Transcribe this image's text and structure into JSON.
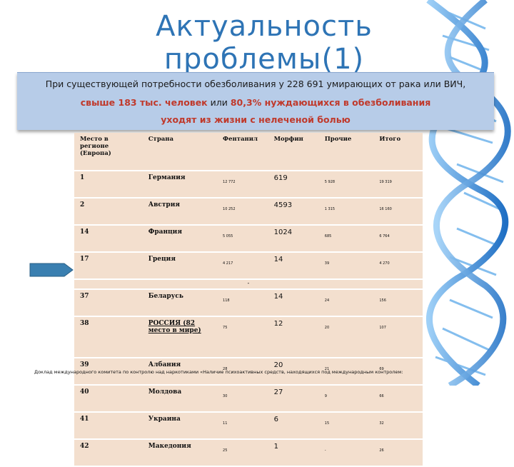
{
  "title": {
    "line1": "Актуальность",
    "line2": "проблемы(1)"
  },
  "banner": {
    "line1": "При существующей потребности обезболивания у 228 691 умирающих от рака или ВИЧ,",
    "line2_a": "свыше 183 тыс. человек",
    "line2_b": " или ",
    "line2_c": "80,3% нуждающихся в обезболивания",
    "line3": "уходят из жизни с нелеченой болью"
  },
  "table": {
    "headers": [
      "Место в регионе (Европа)",
      "Страна",
      "Фентанил",
      "Морфин",
      "Прочие",
      "Итого"
    ],
    "rows": [
      [
        "1",
        "Германия",
        "12 772",
        "619",
        "5 928",
        "19 319"
      ],
      [
        "2",
        "Австрия",
        "10 252",
        "4593",
        "1 315",
        "16 160"
      ],
      [
        "14",
        "Франция",
        "5 055",
        "1024",
        "685",
        "6 764"
      ],
      [
        "17",
        "Греция",
        "4 217",
        "14",
        "39",
        "4 270"
      ],
      [
        "37",
        "Беларусь",
        "118",
        "14",
        "24",
        "156"
      ],
      [
        "38",
        "РОССИЯ (82 место в мире)",
        "75",
        "12",
        "20",
        "107"
      ],
      [
        "39",
        "Албания",
        "28",
        "20",
        "21",
        "69"
      ],
      [
        "40",
        "Молдова",
        "30",
        "27",
        "9",
        "66"
      ],
      [
        "41",
        "Украина",
        "11",
        "6",
        "15",
        "32"
      ],
      [
        "42",
        "Македония",
        "25",
        "1",
        "-",
        "26"
      ]
    ],
    "separator": "-"
  },
  "footnote": "Доклад международного комитета по контролю над наркотиками «Наличие психоактивных средств, находящихся под международным контролем:",
  "colors": {
    "title": "#2e74b5",
    "banner_bg": "#b7cce8",
    "accent_red": "#c0392b",
    "table_bg": "#f3dfce",
    "dna_blue": "#3a8fd9"
  }
}
